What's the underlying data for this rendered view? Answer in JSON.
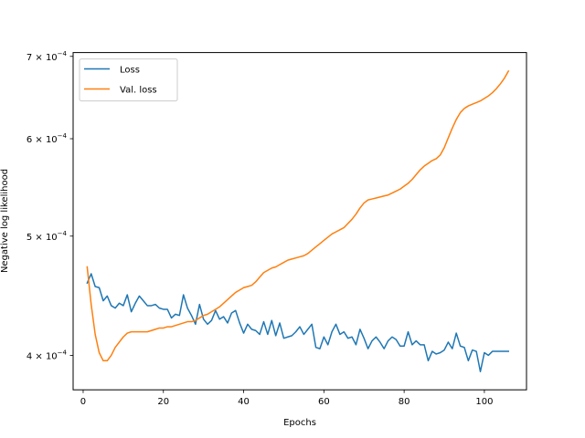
{
  "chart_data": {
    "type": "line",
    "title": "",
    "xlabel": "Epochs",
    "ylabel": "Negative log likelihood",
    "yscale": "log",
    "xlim": [
      -2.5,
      110.5
    ],
    "ylim": [
      0.000375,
      0.000705
    ],
    "xticks": [
      0,
      20,
      40,
      60,
      80,
      100
    ],
    "xtick_labels": [
      "0",
      "20",
      "40",
      "60",
      "80",
      "100"
    ],
    "yticks": [
      0.0004,
      0.0005,
      0.0006,
      0.0007
    ],
    "ytick_mantissas": [
      "4",
      "5",
      "6",
      "7"
    ],
    "ytick_base": "10",
    "ytick_exp": "−4",
    "ytick_times": " × ",
    "grid": false,
    "legend_loc": "upper left",
    "series": [
      {
        "name": "Loss",
        "color": "#1f77b4",
        "x": [
          1,
          2,
          3,
          4,
          5,
          6,
          7,
          8,
          9,
          10,
          11,
          12,
          13,
          14,
          15,
          16,
          17,
          18,
          19,
          20,
          21,
          22,
          23,
          24,
          25,
          26,
          27,
          28,
          29,
          30,
          31,
          32,
          33,
          34,
          35,
          36,
          37,
          38,
          39,
          40,
          41,
          42,
          43,
          44,
          45,
          46,
          47,
          48,
          49,
          50,
          51,
          52,
          53,
          54,
          55,
          56,
          57,
          58,
          59,
          60,
          61,
          62,
          63,
          64,
          65,
          66,
          67,
          68,
          69,
          70,
          71,
          72,
          73,
          74,
          75,
          76,
          77,
          78,
          79,
          80,
          81,
          82,
          83,
          84,
          85,
          86,
          87,
          88,
          89,
          90,
          91,
          92,
          93,
          94,
          95,
          96,
          97,
          98,
          99,
          100,
          101,
          102,
          103,
          104,
          105,
          106
        ],
        "values": [
          0.000458,
          0.000466,
          0.000455,
          0.000454,
          0.000443,
          0.000447,
          0.000439,
          0.000437,
          0.000441,
          0.000439,
          0.000448,
          0.000434,
          0.000441,
          0.000447,
          0.000443,
          0.000439,
          0.000439,
          0.00044,
          0.000437,
          0.000436,
          0.000436,
          0.000429,
          0.000432,
          0.000431,
          0.000448,
          0.000437,
          0.000431,
          0.000424,
          0.00044,
          0.000428,
          0.000424,
          0.000427,
          0.000435,
          0.000428,
          0.00043,
          0.000425,
          0.000433,
          0.000435,
          0.000425,
          0.000417,
          0.000424,
          0.00042,
          0.000419,
          0.000416,
          0.000426,
          0.000416,
          0.000427,
          0.000415,
          0.000425,
          0.000413,
          0.000414,
          0.000415,
          0.000418,
          0.000422,
          0.000416,
          0.00042,
          0.000424,
          0.000406,
          0.000405,
          0.000414,
          0.000408,
          0.000418,
          0.000424,
          0.000416,
          0.000418,
          0.000413,
          0.000414,
          0.000408,
          0.00042,
          0.000413,
          0.000405,
          0.000411,
          0.000414,
          0.00041,
          0.000405,
          0.000411,
          0.000414,
          0.000412,
          0.000407,
          0.000407,
          0.000418,
          0.000408,
          0.000411,
          0.000408,
          0.000408,
          0.000396,
          0.000403,
          0.000401,
          0.000402,
          0.000404,
          0.00041,
          0.000405,
          0.000417,
          0.000407,
          0.000406,
          0.000396,
          0.000404,
          0.000403,
          0.000388,
          0.000402,
          0.0004,
          0.000403,
          0.000403,
          0.000403,
          0.000403,
          0.000403
        ]
      },
      {
        "name": "Val. loss",
        "color": "#ff7f0e",
        "x": [
          1,
          2,
          3,
          4,
          5,
          6,
          7,
          8,
          9,
          10,
          11,
          12,
          13,
          14,
          15,
          16,
          17,
          18,
          19,
          20,
          21,
          22,
          23,
          24,
          25,
          26,
          27,
          28,
          29,
          30,
          31,
          32,
          33,
          34,
          35,
          36,
          37,
          38,
          39,
          40,
          41,
          42,
          43,
          44,
          45,
          46,
          47,
          48,
          49,
          50,
          51,
          52,
          53,
          54,
          55,
          56,
          57,
          58,
          59,
          60,
          61,
          62,
          63,
          64,
          65,
          66,
          67,
          68,
          69,
          70,
          71,
          72,
          73,
          74,
          75,
          76,
          77,
          78,
          79,
          80,
          81,
          82,
          83,
          84,
          85,
          86,
          87,
          88,
          89,
          90,
          91,
          92,
          93,
          94,
          95,
          96,
          97,
          98,
          99,
          100,
          101,
          102,
          103,
          104,
          105,
          106
        ],
        "values": [
          0.000472,
          0.00044,
          0.000416,
          0.000402,
          0.000396,
          0.000396,
          0.0004,
          0.000406,
          0.00041,
          0.000414,
          0.000417,
          0.000418,
          0.000418,
          0.000418,
          0.000418,
          0.000418,
          0.000419,
          0.00042,
          0.000421,
          0.000421,
          0.000422,
          0.000422,
          0.000423,
          0.000424,
          0.000425,
          0.000426,
          0.000426,
          0.000427,
          0.000429,
          0.000431,
          0.000432,
          0.000434,
          0.000436,
          0.000438,
          0.000441,
          0.000444,
          0.000447,
          0.00045,
          0.000452,
          0.000454,
          0.000455,
          0.000456,
          0.000459,
          0.000463,
          0.000467,
          0.000469,
          0.000471,
          0.000472,
          0.000474,
          0.000476,
          0.000478,
          0.000479,
          0.00048,
          0.000481,
          0.000482,
          0.000484,
          0.000487,
          0.00049,
          0.000493,
          0.000496,
          0.000499,
          0.000502,
          0.000504,
          0.000506,
          0.000508,
          0.000512,
          0.000516,
          0.000521,
          0.000527,
          0.000532,
          0.000535,
          0.000536,
          0.000537,
          0.000538,
          0.000539,
          0.00054,
          0.000542,
          0.000544,
          0.000546,
          0.000549,
          0.000552,
          0.000556,
          0.000561,
          0.000566,
          0.00057,
          0.000573,
          0.000576,
          0.000578,
          0.000582,
          0.00059,
          0.000601,
          0.000612,
          0.000622,
          0.00063,
          0.000635,
          0.000638,
          0.00064,
          0.000642,
          0.000644,
          0.000647,
          0.00065,
          0.000654,
          0.000659,
          0.000665,
          0.000672,
          0.000681
        ]
      }
    ]
  }
}
